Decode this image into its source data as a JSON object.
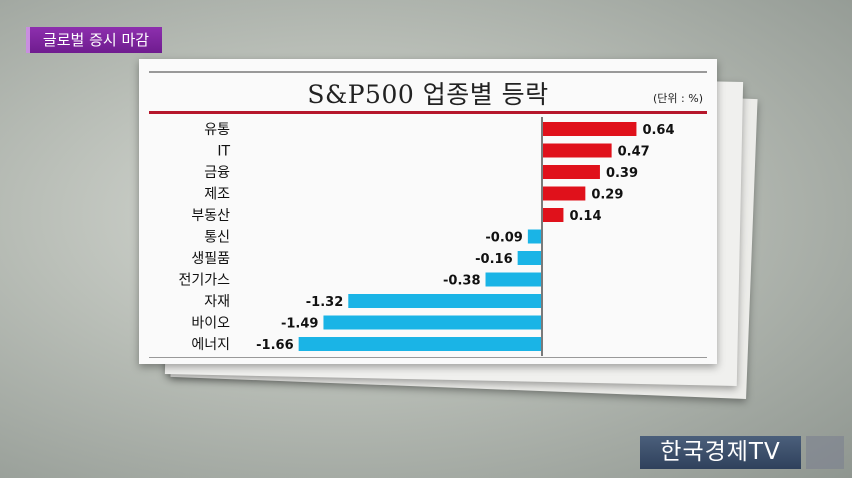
{
  "header_tag": "글로벌 증시 마감",
  "title": "S&P500 업종별 등락",
  "unit": "(단위 : %)",
  "brand": "한국경제TV",
  "colors": {
    "positive": "#e0111b",
    "negative": "#1ab4e6",
    "tag": "#7d23a0",
    "brand": "#3b4e6b"
  },
  "chart_data": {
    "type": "bar",
    "orientation": "horizontal",
    "categories": [
      "유통",
      "IT",
      "금융",
      "제조",
      "부동산",
      "통신",
      "생필품",
      "전기가스",
      "자재",
      "바이오",
      "에너지"
    ],
    "values": [
      0.64,
      0.47,
      0.39,
      0.29,
      0.14,
      -0.09,
      -0.16,
      -0.38,
      -1.32,
      -1.49,
      -1.66
    ],
    "value_labels": [
      "0.64",
      "0.47",
      "0.39",
      "0.29",
      "0.14",
      "-0.09",
      "-0.16",
      "-0.38",
      "-1.32",
      "-1.49",
      "-1.66"
    ],
    "title": "S&P500 업종별 등락",
    "unit": "%"
  }
}
